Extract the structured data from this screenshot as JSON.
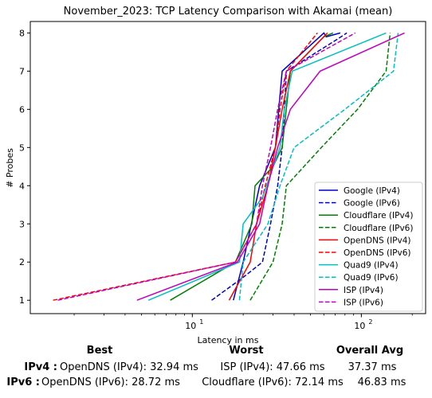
{
  "chart_data": {
    "type": "line",
    "title": "November_2023: TCP Latency Comparison with Akamai (mean)",
    "xlabel": "Latency in ms",
    "ylabel": "# Probes",
    "xscale": "log",
    "xlim": [
      1.1,
      240
    ],
    "ylim": [
      0.65,
      8.3
    ],
    "x_ticks": [
      {
        "value": 10,
        "base": "10",
        "exp": "1"
      },
      {
        "value": 100,
        "base": "10",
        "exp": "2"
      }
    ],
    "y_ticks": [
      1,
      2,
      3,
      4,
      5,
      6,
      7,
      8
    ],
    "legend_position": "lower-right",
    "grid": false,
    "series": [
      {
        "name": "Google (IPv4)",
        "color": "#0000cc",
        "dash": "solid",
        "points": [
          [
            17.5,
            1
          ],
          [
            20,
            2
          ],
          [
            25,
            4
          ],
          [
            31,
            5
          ],
          [
            34,
            7
          ],
          [
            60,
            8
          ],
          [
            62,
            7.9
          ],
          [
            75,
            8
          ]
        ]
      },
      {
        "name": "Google (IPv6)",
        "color": "#0000cc",
        "dash": "dashed",
        "points": [
          [
            13,
            1
          ],
          [
            20,
            1.6
          ],
          [
            26,
            2
          ],
          [
            29,
            3
          ],
          [
            32,
            4
          ],
          [
            34,
            5
          ],
          [
            36,
            7
          ],
          [
            70,
            7.8
          ],
          [
            82,
            8
          ]
        ]
      },
      {
        "name": "Cloudflare (IPv4)",
        "color": "#008000",
        "dash": "solid",
        "points": [
          [
            7.4,
            1
          ],
          [
            18,
            2
          ],
          [
            22.5,
            3
          ],
          [
            23.5,
            4
          ],
          [
            30,
            4.5
          ],
          [
            34,
            5
          ],
          [
            38,
            7
          ],
          [
            60,
            7.9
          ],
          [
            68,
            8
          ]
        ]
      },
      {
        "name": "Cloudflare (IPv6)",
        "color": "#008000",
        "dash": "dashed",
        "points": [
          [
            22,
            1
          ],
          [
            30,
            2
          ],
          [
            34,
            3
          ],
          [
            36,
            4
          ],
          [
            58,
            5
          ],
          [
            95,
            6
          ],
          [
            140,
            7
          ],
          [
            148,
            8
          ]
        ]
      },
      {
        "name": "OpenDNS (IPv4)",
        "color": "#ff0000",
        "dash": "solid",
        "points": [
          [
            16.5,
            1
          ],
          [
            22,
            2
          ],
          [
            24,
            3
          ],
          [
            28,
            4
          ],
          [
            31,
            5
          ],
          [
            34,
            6
          ],
          [
            38,
            7
          ],
          [
            63,
            8
          ]
        ]
      },
      {
        "name": "OpenDNS (IPv6)",
        "color": "#ff0000",
        "dash": "dashed",
        "points": [
          [
            1.5,
            1
          ],
          [
            18,
            2
          ],
          [
            24,
            3
          ],
          [
            27,
            4
          ],
          [
            31,
            5
          ],
          [
            33,
            6
          ],
          [
            36,
            7
          ],
          [
            55,
            8
          ]
        ]
      },
      {
        "name": "Quad9 (IPv4)",
        "color": "#00c0c0",
        "dash": "solid",
        "points": [
          [
            5.5,
            1
          ],
          [
            19,
            2
          ],
          [
            20,
            3
          ],
          [
            26,
            3.7
          ],
          [
            33,
            5
          ],
          [
            35,
            6
          ],
          [
            39,
            7
          ],
          [
            140,
            8
          ]
        ]
      },
      {
        "name": "Quad9 (IPv6)",
        "color": "#00c0c0",
        "dash": "dashed",
        "points": [
          [
            19,
            1
          ],
          [
            20,
            2
          ],
          [
            28,
            3
          ],
          [
            33,
            4
          ],
          [
            40,
            5
          ],
          [
            80,
            6
          ],
          [
            155,
            7
          ],
          [
            165,
            8
          ]
        ]
      },
      {
        "name": "ISP (IPv4)",
        "color": "#c000c0",
        "dash": "solid",
        "points": [
          [
            4.7,
            1
          ],
          [
            18.5,
            2
          ],
          [
            25,
            3
          ],
          [
            28,
            4
          ],
          [
            32,
            5
          ],
          [
            38,
            6
          ],
          [
            57,
            7
          ],
          [
            180,
            8
          ]
        ]
      },
      {
        "name": "ISP (IPv6)",
        "color": "#c000c0",
        "dash": "dashed",
        "points": [
          [
            1.6,
            1
          ],
          [
            18,
            2
          ],
          [
            24,
            3
          ],
          [
            26,
            4
          ],
          [
            29,
            5
          ],
          [
            32,
            6
          ],
          [
            36,
            7
          ],
          [
            92,
            8
          ]
        ]
      }
    ]
  },
  "summary": {
    "headers": {
      "best": "Best",
      "worst": "Worst",
      "avg": "Overall Avg"
    },
    "rows": [
      {
        "label": "IPv4 :",
        "best": "OpenDNS (IPv4): 32.94 ms",
        "worst": "ISP (IPv4): 47.66 ms",
        "avg": "37.37 ms"
      },
      {
        "label": "IPv6 :",
        "best": "OpenDNS (IPv6): 28.72 ms",
        "worst": "Cloudflare (IPv6): 72.14 ms",
        "avg": "46.83 ms"
      }
    ]
  }
}
